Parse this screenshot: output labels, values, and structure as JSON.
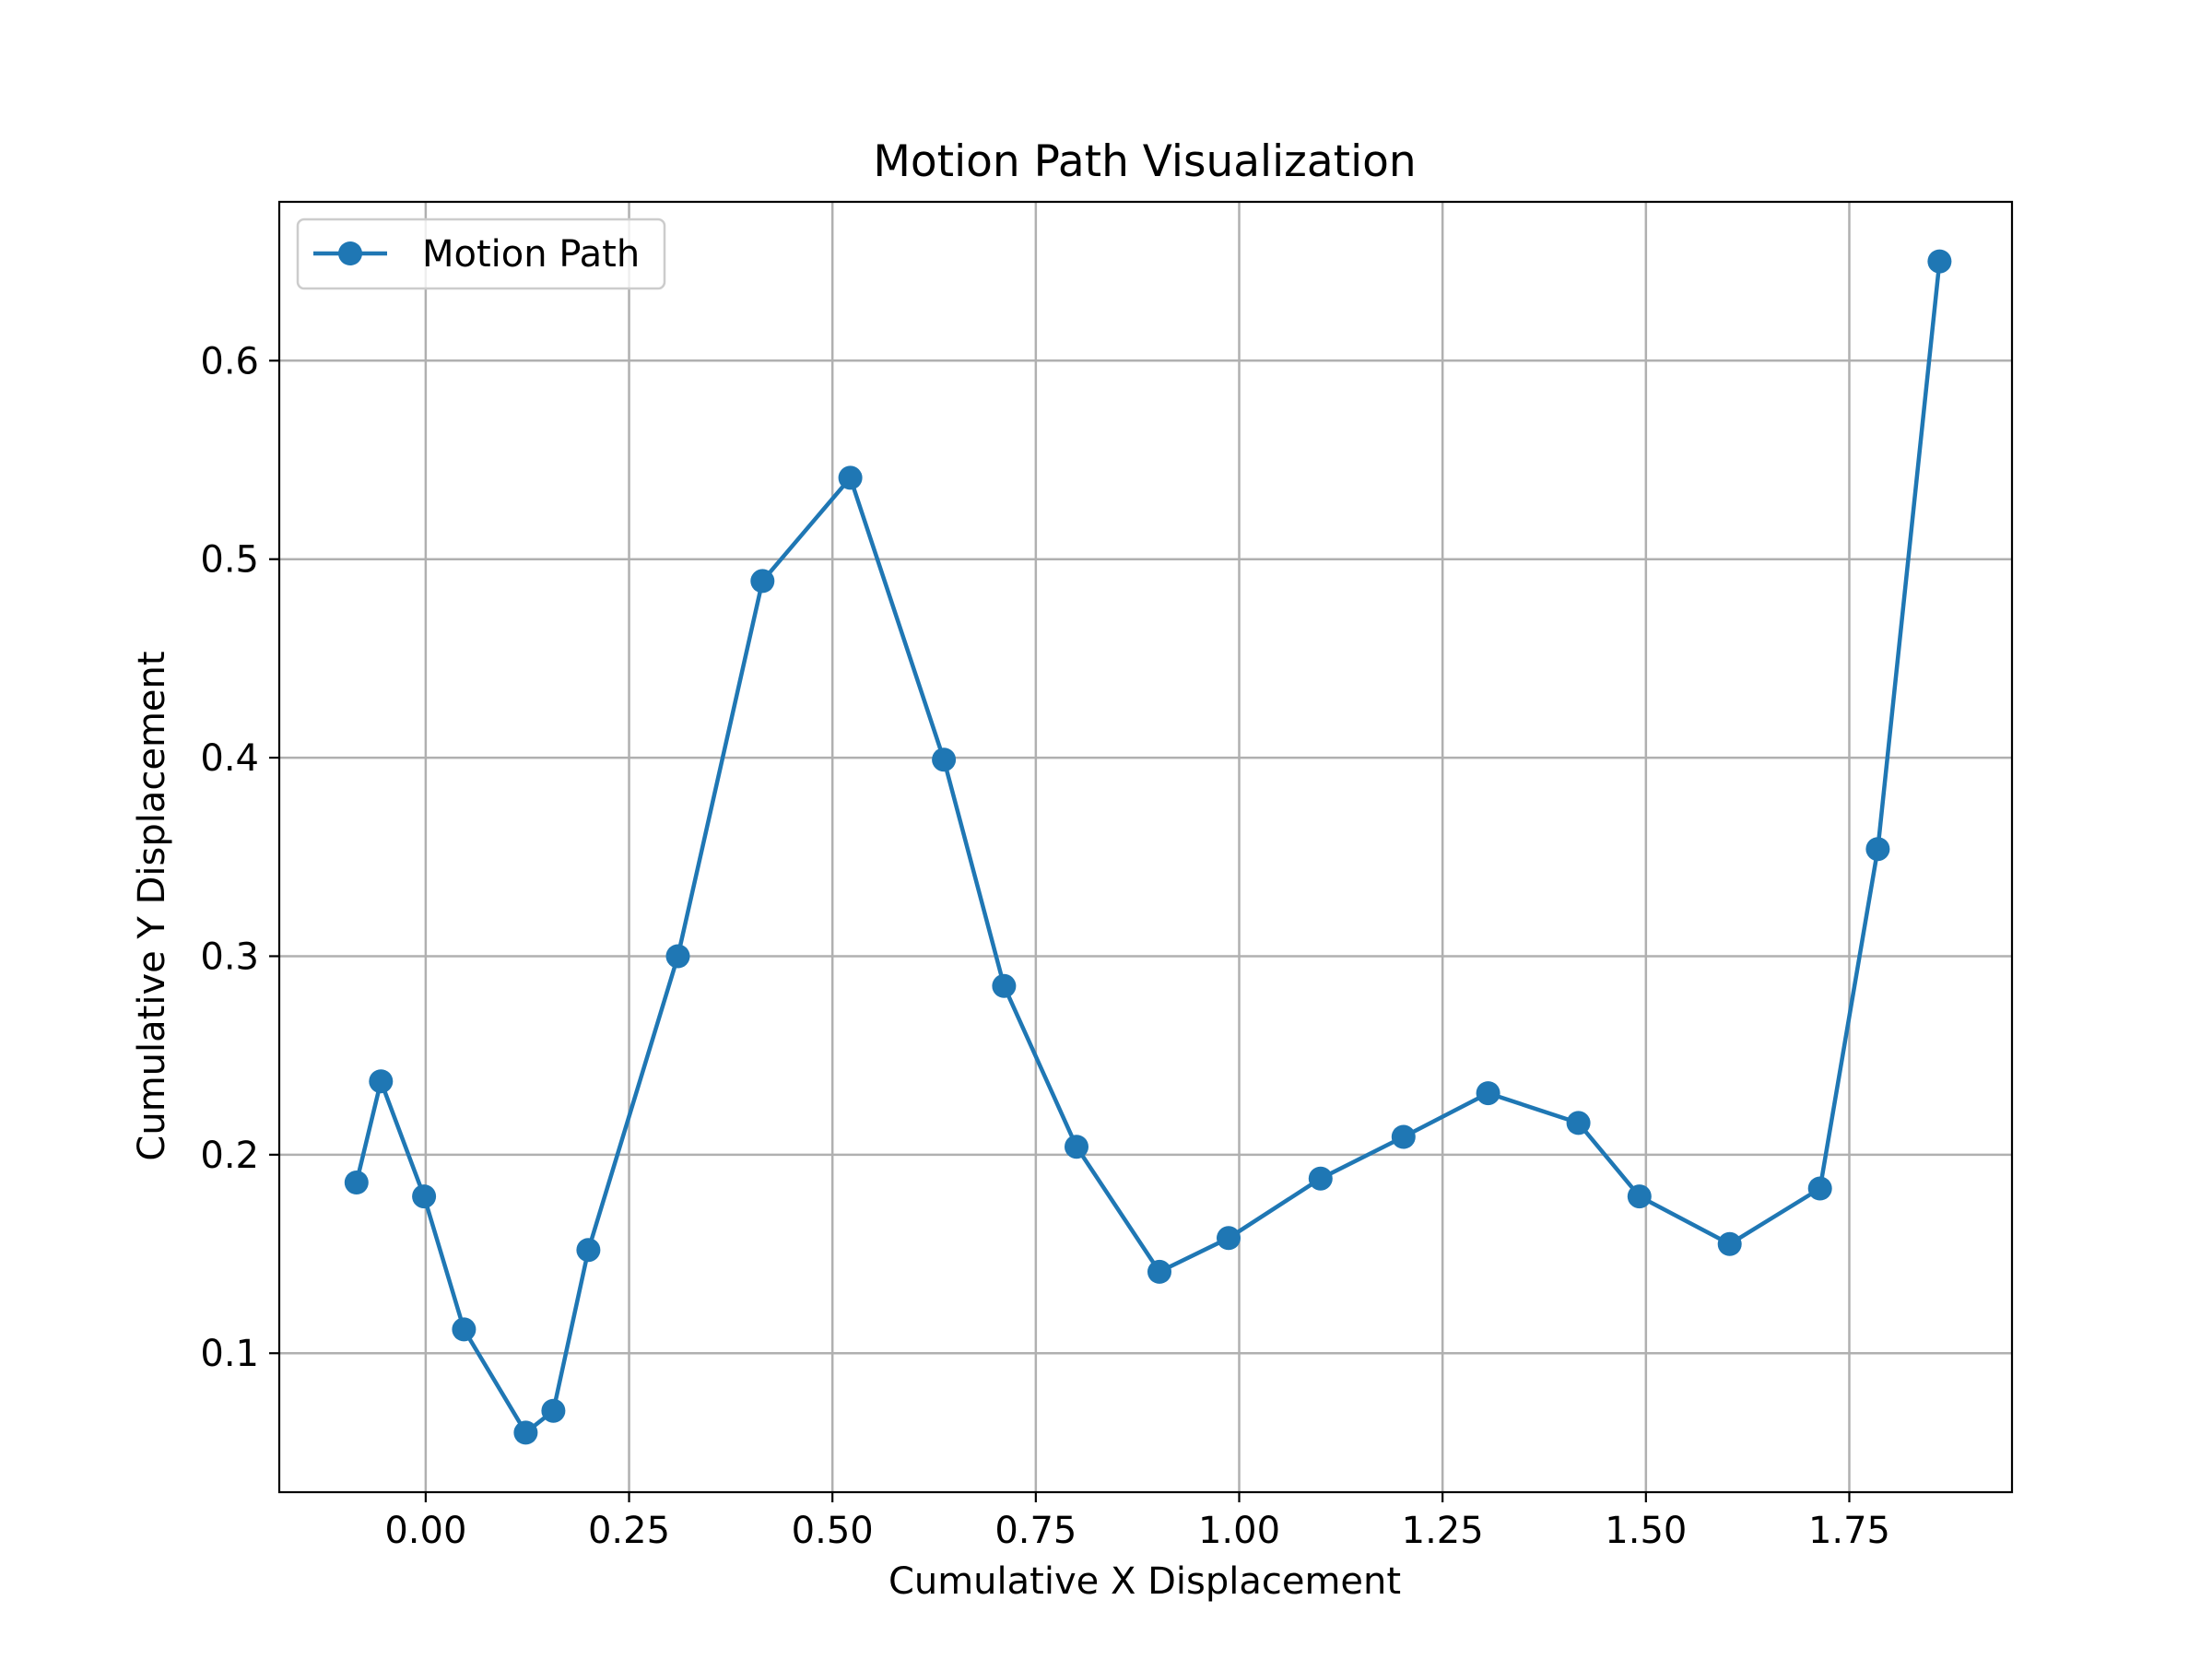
{
  "chart_data": {
    "type": "line",
    "title": "Motion Path Visualization",
    "xlabel": "Cumulative X Displacement",
    "ylabel": "Cumulative Y Displacement",
    "xlim": [
      -0.18,
      1.95
    ],
    "ylim": [
      0.03,
      0.68
    ],
    "xticks": [
      0.0,
      0.25,
      0.5,
      0.75,
      1.0,
      1.25,
      1.5,
      1.75
    ],
    "xtick_labels": [
      "0.00",
      "0.25",
      "0.50",
      "0.75",
      "1.00",
      "1.25",
      "1.50",
      "1.75"
    ],
    "yticks": [
      0.1,
      0.2,
      0.3,
      0.4,
      0.5,
      0.6
    ],
    "ytick_labels": [
      "0.1",
      "0.2",
      "0.3",
      "0.4",
      "0.5",
      "0.6"
    ],
    "grid": true,
    "legend_position": "upper-left",
    "series": [
      {
        "name": "Motion Path",
        "color": "#1f77b4",
        "marker": "circle",
        "x": [
          -0.085,
          -0.055,
          -0.002,
          0.047,
          0.123,
          0.157,
          0.2,
          0.31,
          0.414,
          0.522,
          0.637,
          0.711,
          0.8,
          0.902,
          0.987,
          1.1,
          1.202,
          1.306,
          1.417,
          1.492,
          1.603,
          1.714,
          1.785,
          1.861
        ],
        "y": [
          0.186,
          0.237,
          0.179,
          0.112,
          0.06,
          0.071,
          0.152,
          0.3,
          0.489,
          0.541,
          0.399,
          0.285,
          0.204,
          0.141,
          0.158,
          0.188,
          0.209,
          0.231,
          0.216,
          0.179,
          0.155,
          0.183,
          0.354,
          0.65
        ]
      }
    ]
  }
}
